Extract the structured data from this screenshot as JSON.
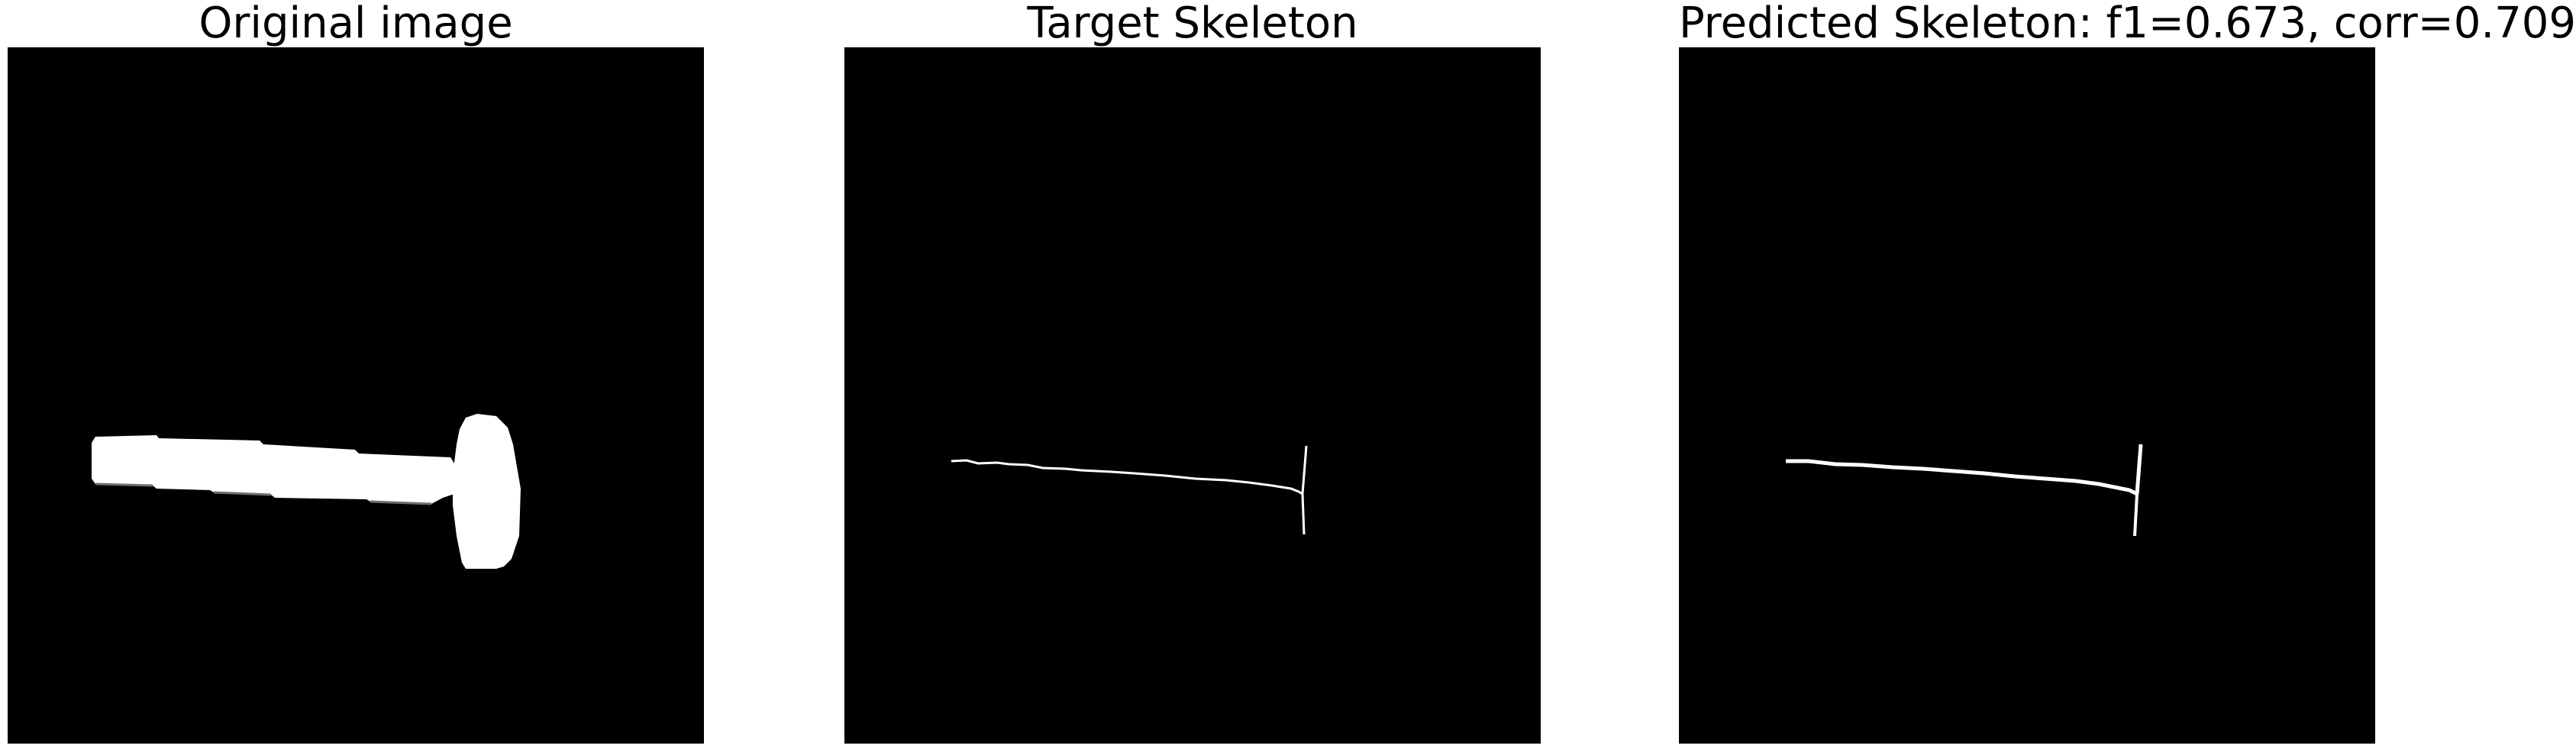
{
  "panels": [
    {
      "title": "Original image"
    },
    {
      "title": "Target Skeleton"
    },
    {
      "title": "Predicted Skeleton: f1=0.673, corr=0.709"
    }
  ],
  "colors": {
    "background": "#ffffff",
    "image_background": "#000000",
    "foreground": "#ffffff"
  }
}
